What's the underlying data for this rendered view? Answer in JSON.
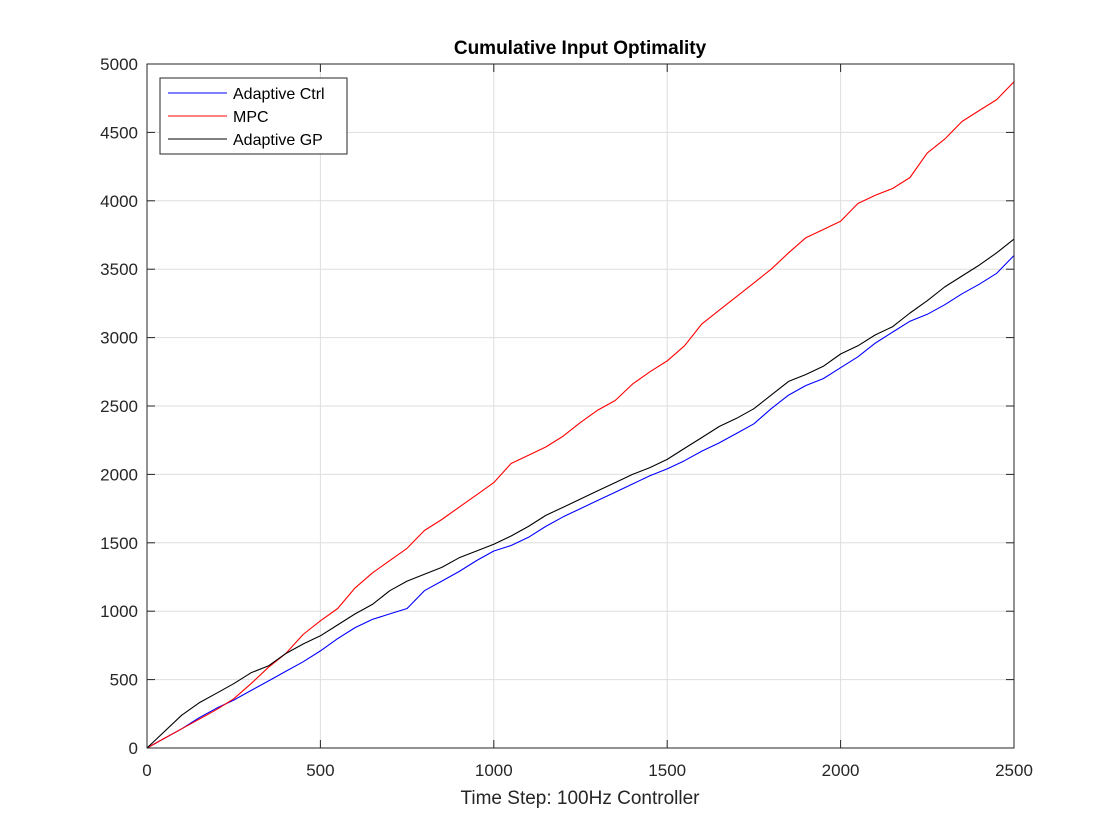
{
  "chart_data": {
    "type": "line",
    "title": "Cumulative Input Optimality",
    "xlabel": "Time Step: 100Hz Controller",
    "ylabel": "",
    "xlim": [
      0,
      2500
    ],
    "ylim": [
      0,
      5000
    ],
    "xticks": [
      0,
      500,
      1000,
      1500,
      2000,
      2500
    ],
    "yticks": [
      0,
      500,
      1000,
      1500,
      2000,
      2500,
      3000,
      3500,
      4000,
      4500,
      5000
    ],
    "xtick_labels": [
      "0",
      "500",
      "1000",
      "1500",
      "2000",
      "2500"
    ],
    "ytick_labels": [
      "0",
      "500",
      "1000",
      "1500",
      "2000",
      "2500",
      "3000",
      "3500",
      "4000",
      "4500",
      "5000"
    ],
    "grid": true,
    "legend_position": "top-left",
    "series": [
      {
        "name": "Adaptive Ctrl",
        "color": "#0000ff",
        "x": [
          0,
          50,
          100,
          150,
          200,
          250,
          300,
          350,
          400,
          450,
          500,
          550,
          600,
          650,
          700,
          750,
          800,
          850,
          900,
          950,
          1000,
          1050,
          1100,
          1150,
          1200,
          1250,
          1300,
          1350,
          1400,
          1450,
          1500,
          1550,
          1600,
          1650,
          1700,
          1750,
          1800,
          1850,
          1900,
          1950,
          2000,
          2050,
          2100,
          2150,
          2200,
          2250,
          2300,
          2350,
          2400,
          2450,
          2500
        ],
        "y": [
          0,
          70,
          140,
          220,
          290,
          350,
          420,
          490,
          560,
          630,
          710,
          800,
          880,
          940,
          980,
          1020,
          1150,
          1220,
          1290,
          1370,
          1440,
          1480,
          1540,
          1620,
          1690,
          1750,
          1810,
          1870,
          1930,
          1990,
          2040,
          2100,
          2170,
          2230,
          2300,
          2370,
          2480,
          2580,
          2650,
          2700,
          2780,
          2860,
          2960,
          3040,
          3120,
          3170,
          3240,
          3320,
          3390,
          3470,
          3600
        ]
      },
      {
        "name": "MPC",
        "color": "#ff0000",
        "x": [
          0,
          50,
          100,
          150,
          200,
          250,
          300,
          350,
          400,
          450,
          500,
          550,
          600,
          650,
          700,
          750,
          800,
          850,
          900,
          950,
          1000,
          1050,
          1100,
          1150,
          1200,
          1250,
          1300,
          1350,
          1400,
          1450,
          1500,
          1550,
          1600,
          1650,
          1700,
          1750,
          1800,
          1850,
          1900,
          1950,
          2000,
          2050,
          2100,
          2150,
          2200,
          2250,
          2300,
          2350,
          2400,
          2450,
          2500
        ],
        "y": [
          0,
          70,
          140,
          210,
          280,
          360,
          470,
          590,
          690,
          830,
          930,
          1020,
          1170,
          1280,
          1370,
          1460,
          1590,
          1670,
          1760,
          1850,
          1940,
          2080,
          2140,
          2200,
          2280,
          2380,
          2470,
          2540,
          2660,
          2750,
          2830,
          2940,
          3100,
          3200,
          3300,
          3400,
          3500,
          3620,
          3730,
          3790,
          3850,
          3980,
          4040,
          4090,
          4170,
          4350,
          4450,
          4580,
          4660,
          4740,
          4870
        ]
      },
      {
        "name": "Adaptive GP",
        "color": "#000000",
        "x": [
          0,
          50,
          100,
          150,
          200,
          250,
          300,
          350,
          400,
          450,
          500,
          550,
          600,
          650,
          700,
          750,
          800,
          850,
          900,
          950,
          1000,
          1050,
          1100,
          1150,
          1200,
          1250,
          1300,
          1350,
          1400,
          1450,
          1500,
          1550,
          1600,
          1650,
          1700,
          1750,
          1800,
          1850,
          1900,
          1950,
          2000,
          2050,
          2100,
          2150,
          2200,
          2250,
          2300,
          2350,
          2400,
          2450,
          2500
        ],
        "y": [
          0,
          120,
          240,
          330,
          400,
          470,
          550,
          600,
          690,
          760,
          820,
          900,
          980,
          1050,
          1150,
          1220,
          1270,
          1320,
          1390,
          1440,
          1490,
          1550,
          1620,
          1700,
          1760,
          1820,
          1880,
          1940,
          2000,
          2050,
          2110,
          2190,
          2270,
          2350,
          2410,
          2480,
          2580,
          2680,
          2730,
          2790,
          2880,
          2940,
          3020,
          3080,
          3180,
          3270,
          3370,
          3450,
          3530,
          3620,
          3720
        ]
      }
    ]
  }
}
